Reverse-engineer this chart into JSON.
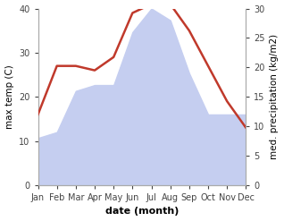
{
  "months": [
    "Jan",
    "Feb",
    "Mar",
    "Apr",
    "May",
    "Jun",
    "Jul",
    "Aug",
    "Sep",
    "Oct",
    "Nov",
    "Dec"
  ],
  "temperature": [
    16,
    27,
    27,
    26,
    29,
    39,
    41,
    41,
    35,
    27,
    19,
    13
  ],
  "precipitation": [
    8,
    9,
    16,
    17,
    17,
    26,
    30,
    28,
    19,
    12,
    12,
    12
  ],
  "temp_color": "#c0392b",
  "precip_color_fill": "#c5cef0",
  "temp_ylim": [
    0,
    40
  ],
  "precip_ylim": [
    0,
    30
  ],
  "xlabel": "date (month)",
  "ylabel_left": "max temp (C)",
  "ylabel_right": "med. precipitation (kg/m2)",
  "temp_linewidth": 1.8,
  "xlabel_fontsize": 8,
  "ylabel_fontsize": 7.5,
  "tick_fontsize": 7
}
